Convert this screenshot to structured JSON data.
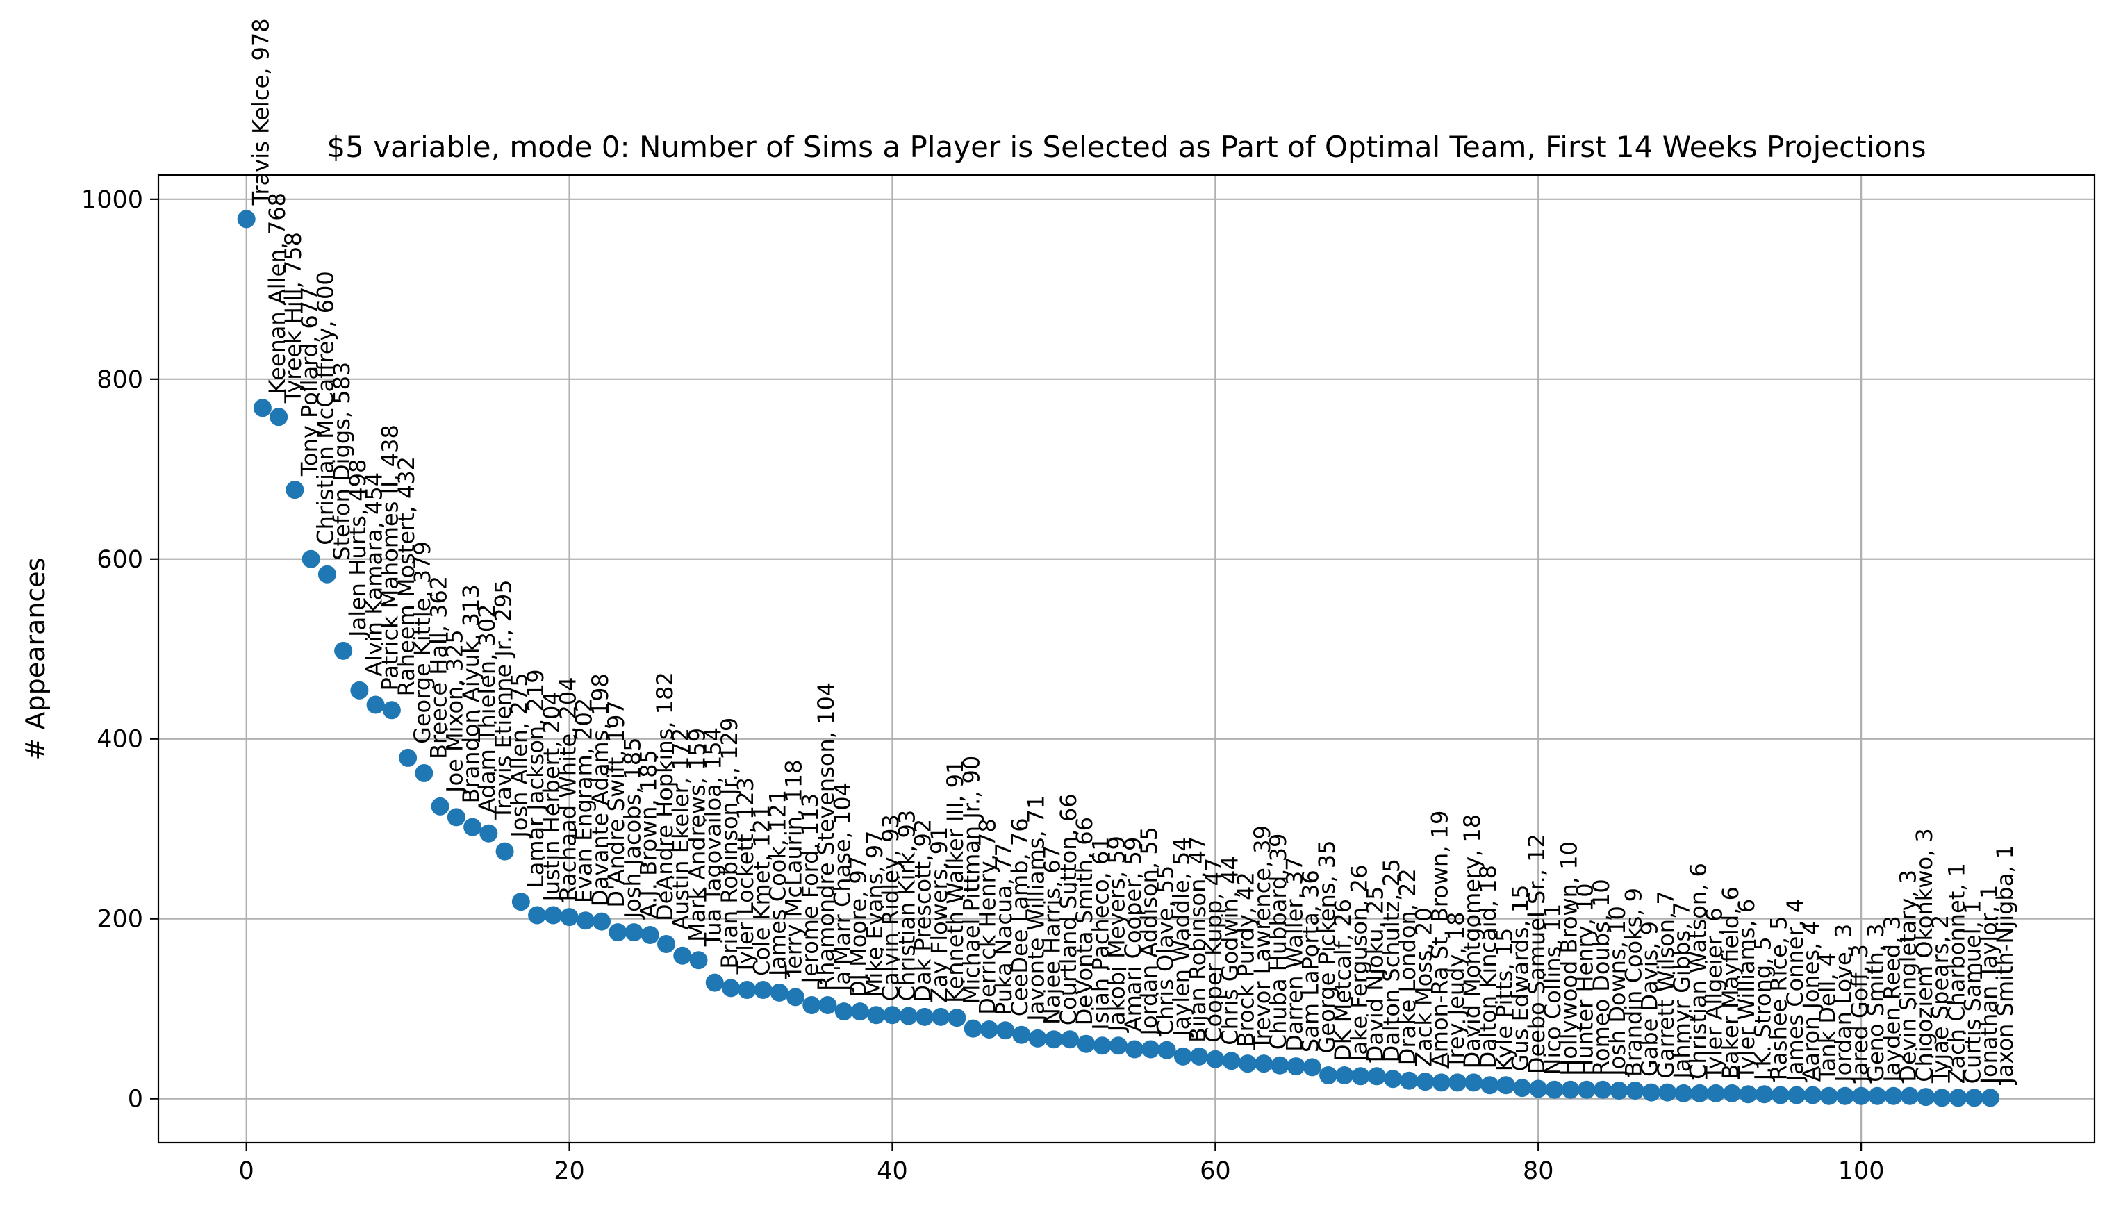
{
  "chart_data": {
    "type": "scatter",
    "title": "$5 variable, mode 0: Number of Sims a Player is Selected as Part of Optimal Team, First 14 Weeks Projections",
    "xlabel": "",
    "ylabel": "# Appearances",
    "xlim": [
      -5.45,
      114.45
    ],
    "ylim": [
      -48.9,
      1026.9
    ],
    "xticks": [
      0,
      20,
      40,
      60,
      80,
      100
    ],
    "yticks": [
      0,
      200,
      400,
      600,
      800,
      1000
    ],
    "grid": true,
    "marker_color": "#1f77b4",
    "points": [
      {
        "x": 0,
        "y": 978,
        "label": "Travis Kelce, 978"
      },
      {
        "x": 1,
        "y": 768,
        "label": "Keenan Allen, 768"
      },
      {
        "x": 2,
        "y": 758,
        "label": "Tyreek Hill, 758"
      },
      {
        "x": 3,
        "y": 677,
        "label": "Tony Pollard, 677"
      },
      {
        "x": 4,
        "y": 600,
        "label": "Christian McCaffrey, 600"
      },
      {
        "x": 5,
        "y": 583,
        "label": "Stefon Diggs, 583"
      },
      {
        "x": 6,
        "y": 498,
        "label": "Jalen Hurts, 498"
      },
      {
        "x": 7,
        "y": 454,
        "label": "Alvin Kamara, 454"
      },
      {
        "x": 8,
        "y": 438,
        "label": "Patrick Mahomes II, 438"
      },
      {
        "x": 9,
        "y": 432,
        "label": "Raheem Mostert, 432"
      },
      {
        "x": 10,
        "y": 379,
        "label": "George Kittle, 379"
      },
      {
        "x": 11,
        "y": 362,
        "label": "Breece Hall, 362"
      },
      {
        "x": 12,
        "y": 325,
        "label": "Joe Mixon, 325"
      },
      {
        "x": 13,
        "y": 313,
        "label": "Brandon Aiyuk, 313"
      },
      {
        "x": 14,
        "y": 302,
        "label": "Adam Thielen, 302"
      },
      {
        "x": 15,
        "y": 295,
        "label": "Travis Etienne Jr., 295"
      },
      {
        "x": 16,
        "y": 275,
        "label": "Josh Allen, 275"
      },
      {
        "x": 17,
        "y": 219,
        "label": "Lamar Jackson, 219"
      },
      {
        "x": 18,
        "y": 204,
        "label": "Justin Herbert, 204"
      },
      {
        "x": 19,
        "y": 204,
        "label": "Rachaad White, 204"
      },
      {
        "x": 20,
        "y": 202,
        "label": "Evan Engram, 202"
      },
      {
        "x": 21,
        "y": 198,
        "label": "Davante Adams, 198"
      },
      {
        "x": 22,
        "y": 197,
        "label": "D'Andre Swift, 197"
      },
      {
        "x": 23,
        "y": 185,
        "label": "Josh Jacobs, 185"
      },
      {
        "x": 24,
        "y": 185,
        "label": "A.J. Brown, 185"
      },
      {
        "x": 25,
        "y": 182,
        "label": "DeAndre Hopkins, 182"
      },
      {
        "x": 26,
        "y": 172,
        "label": "Austin Ekeler, 172"
      },
      {
        "x": 27,
        "y": 159,
        "label": "Mark Andrews, 159"
      },
      {
        "x": 28,
        "y": 154,
        "label": "Tua Tagovailoa, 154"
      },
      {
        "x": 29,
        "y": 129,
        "label": "Brian Robinson Jr., 129"
      },
      {
        "x": 30,
        "y": 123,
        "label": "Tyler Lockett, 123"
      },
      {
        "x": 31,
        "y": 121,
        "label": "Cole Kmet, 121"
      },
      {
        "x": 32,
        "y": 121,
        "label": "James Cook, 121"
      },
      {
        "x": 33,
        "y": 118,
        "label": "Terry McLaurin, 118"
      },
      {
        "x": 34,
        "y": 113,
        "label": "Jerome Ford, 113"
      },
      {
        "x": 35,
        "y": 104,
        "label": "Rhamondre Stevenson, 104"
      },
      {
        "x": 36,
        "y": 104,
        "label": "Ja'Marr Chase, 104"
      },
      {
        "x": 37,
        "y": 97,
        "label": "DJ Moore, 97"
      },
      {
        "x": 38,
        "y": 97,
        "label": "Mike Evans, 97"
      },
      {
        "x": 39,
        "y": 93,
        "label": "Calvin Ridley, 93"
      },
      {
        "x": 40,
        "y": 93,
        "label": "Christian Kirk, 93"
      },
      {
        "x": 41,
        "y": 92,
        "label": "Dak Prescott, 92"
      },
      {
        "x": 42,
        "y": 91,
        "label": "Zay Flowers, 91"
      },
      {
        "x": 43,
        "y": 91,
        "label": "Kenneth Walker III, 91"
      },
      {
        "x": 44,
        "y": 90,
        "label": "Michael Pittman Jr., 90"
      },
      {
        "x": 45,
        "y": 78,
        "label": "Derrick Henry, 78"
      },
      {
        "x": 46,
        "y": 77,
        "label": "Puka Nacua, 77"
      },
      {
        "x": 47,
        "y": 76,
        "label": "CeeDee Lamb, 76"
      },
      {
        "x": 48,
        "y": 71,
        "label": "Javonte Williams, 71"
      },
      {
        "x": 49,
        "y": 67,
        "label": "Najee Harris, 67"
      },
      {
        "x": 50,
        "y": 66,
        "label": "Courtland Sutton, 66"
      },
      {
        "x": 51,
        "y": 66,
        "label": "DeVonta Smith, 66"
      },
      {
        "x": 52,
        "y": 61,
        "label": "Isiah Pacheco, 61"
      },
      {
        "x": 53,
        "y": 59,
        "label": "Jakobi Meyers, 59"
      },
      {
        "x": 54,
        "y": 59,
        "label": "Amari Cooper, 59"
      },
      {
        "x": 55,
        "y": 55,
        "label": "Jordan Addison, 55"
      },
      {
        "x": 56,
        "y": 55,
        "label": "Chris Olave, 55"
      },
      {
        "x": 57,
        "y": 54,
        "label": "Jaylen Waddle, 54"
      },
      {
        "x": 58,
        "y": 47,
        "label": "Bijan Robinson, 47"
      },
      {
        "x": 59,
        "y": 47,
        "label": "Cooper Kupp, 47"
      },
      {
        "x": 60,
        "y": 44,
        "label": "Chris Godwin, 44"
      },
      {
        "x": 61,
        "y": 42,
        "label": "Brock Purdy, 42"
      },
      {
        "x": 62,
        "y": 39,
        "label": "Trevor Lawrence, 39"
      },
      {
        "x": 63,
        "y": 39,
        "label": "Chuba Hubbard, 39"
      },
      {
        "x": 64,
        "y": 37,
        "label": "Darren Waller, 37"
      },
      {
        "x": 65,
        "y": 36,
        "label": "Sam LaPorta, 36"
      },
      {
        "x": 66,
        "y": 35,
        "label": "George Pickens, 35"
      },
      {
        "x": 67,
        "y": 26,
        "label": "DK Metcalf, 26"
      },
      {
        "x": 68,
        "y": 26,
        "label": "Jake Ferguson, 26"
      },
      {
        "x": 69,
        "y": 25,
        "label": "David Njoku, 25"
      },
      {
        "x": 70,
        "y": 25,
        "label": "Dalton Schultz, 25"
      },
      {
        "x": 71,
        "y": 22,
        "label": "Drake London, 22"
      },
      {
        "x": 72,
        "y": 20,
        "label": "Zack Moss, 20"
      },
      {
        "x": 73,
        "y": 19,
        "label": "Amon-Ra St. Brown, 19"
      },
      {
        "x": 74,
        "y": 18,
        "label": "Trey Jeudy, 18"
      },
      {
        "x": 75,
        "y": 18,
        "label": "David Montgomery, 18"
      },
      {
        "x": 76,
        "y": 18,
        "label": "Dalton Kincaid, 18"
      },
      {
        "x": 77,
        "y": 15,
        "label": "Kyle Pitts, 15"
      },
      {
        "x": 78,
        "y": 15,
        "label": "Gus Edwards, 15"
      },
      {
        "x": 79,
        "y": 12,
        "label": "Deebo Samuel Sr., 12"
      },
      {
        "x": 80,
        "y": 11,
        "label": "Nico Collins, 11"
      },
      {
        "x": 81,
        "y": 10,
        "label": "Hollywood Brown, 10"
      },
      {
        "x": 82,
        "y": 10,
        "label": "Hunter Henry, 10"
      },
      {
        "x": 83,
        "y": 10,
        "label": "Romeo Doubs, 10"
      },
      {
        "x": 84,
        "y": 10,
        "label": "Josh Downs, 10"
      },
      {
        "x": 85,
        "y": 9,
        "label": "Brandin Cooks, 9"
      },
      {
        "x": 86,
        "y": 9,
        "label": "Gabe Davis, 9"
      },
      {
        "x": 87,
        "y": 7,
        "label": "Garrett Wilson, 7"
      },
      {
        "x": 88,
        "y": 7,
        "label": "Jahmyr Gibbs, 7"
      },
      {
        "x": 89,
        "y": 6,
        "label": "Christian Watson, 6"
      },
      {
        "x": 90,
        "y": 6,
        "label": "Tyler Allgeier, 6"
      },
      {
        "x": 91,
        "y": 6,
        "label": "Baker Mayfield, 6"
      },
      {
        "x": 92,
        "y": 6,
        "label": "Tyler Williams, 6"
      },
      {
        "x": 93,
        "y": 5,
        "label": "J.K. Strong, 5"
      },
      {
        "x": 94,
        "y": 5,
        "label": "Rashee Rice, 5"
      },
      {
        "x": 95,
        "y": 4,
        "label": "James Conner, 4"
      },
      {
        "x": 96,
        "y": 4,
        "label": "Aaron Jones, 4"
      },
      {
        "x": 97,
        "y": 4,
        "label": "Tank Dell, 4"
      },
      {
        "x": 98,
        "y": 3,
        "label": "Jordan Love, 3"
      },
      {
        "x": 99,
        "y": 3,
        "label": "Jared Goff, 3"
      },
      {
        "x": 100,
        "y": 3,
        "label": "Geno Smith, 3"
      },
      {
        "x": 101,
        "y": 3,
        "label": "Jayden Reed, 3"
      },
      {
        "x": 102,
        "y": 3,
        "label": "Devin Singletary, 3"
      },
      {
        "x": 103,
        "y": 3,
        "label": "Chigoziem Okonkwo, 3"
      },
      {
        "x": 104,
        "y": 2,
        "label": "Tyjae Spears, 2"
      },
      {
        "x": 105,
        "y": 1,
        "label": "Zach Charbonnet, 1"
      },
      {
        "x": 106,
        "y": 1,
        "label": "Curtis Samuel, 1"
      },
      {
        "x": 107,
        "y": 1,
        "label": "Jonathan Taylor, 1"
      },
      {
        "x": 108,
        "y": 1,
        "label": "Jaxon Smith-Njigba, 1"
      }
    ]
  }
}
